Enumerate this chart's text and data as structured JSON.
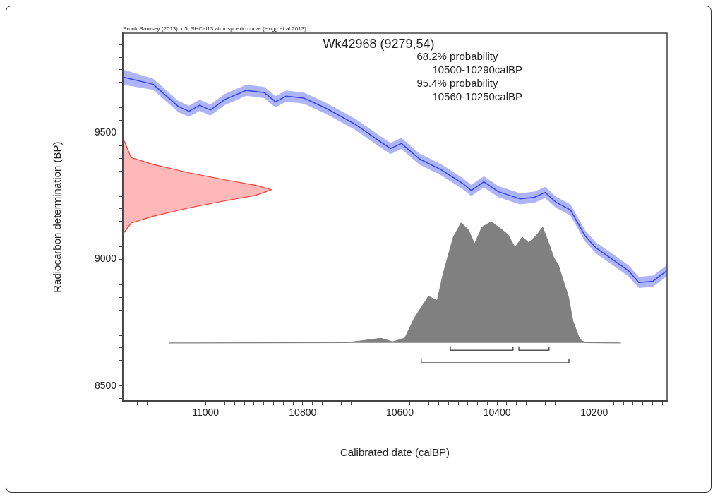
{
  "chart_data": {
    "type": "area",
    "title": "Wk42968 (9279,54)",
    "xlabel": "Calibrated date (calBP)",
    "ylabel": "Radiocarbon determination (BP)",
    "annotations": [
      "Bronk Ramsey (2013); r:5; SHCal13 atmospheric curve (Hogg et al 2013)",
      "68.2% probability",
      "10500-10290calBP",
      "95.4% probability",
      "10560-10250calBP"
    ],
    "xlim": [
      11170,
      10050
    ],
    "ylim": [
      8440,
      9895
    ],
    "xticks": [
      {
        "value": 11160,
        "label": null
      },
      {
        "value": 11140,
        "label": null
      },
      {
        "value": 11120,
        "label": null
      },
      {
        "value": 11100,
        "label": null
      },
      {
        "value": 11080,
        "label": null
      },
      {
        "value": 11060,
        "label": null
      },
      {
        "value": 11040,
        "label": null
      },
      {
        "value": 11020,
        "label": null
      },
      11000,
      {
        "value": 10980,
        "label": null
      },
      {
        "value": 10960,
        "label": null
      },
      {
        "value": 10940,
        "label": null
      },
      {
        "value": 10920,
        "label": null
      },
      {
        "value": 10900,
        "label": null
      },
      {
        "value": 10880,
        "label": null
      },
      {
        "value": 10860,
        "label": null
      },
      {
        "value": 10840,
        "label": null
      },
      {
        "value": 10820,
        "label": null
      },
      10800,
      {
        "value": 10780,
        "label": null
      },
      {
        "value": 10760,
        "label": null
      },
      {
        "value": 10740,
        "label": null
      },
      {
        "value": 10720,
        "label": null
      },
      {
        "value": 10700,
        "label": null
      },
      {
        "value": 10680,
        "label": null
      },
      {
        "value": 10660,
        "label": null
      },
      {
        "value": 10640,
        "label": null
      },
      {
        "value": 10620,
        "label": null
      },
      10600,
      {
        "value": 10580,
        "label": null
      },
      {
        "value": 10560,
        "label": null
      },
      {
        "value": 10540,
        "label": null
      },
      {
        "value": 10520,
        "label": null
      },
      {
        "value": 10500,
        "label": null
      },
      {
        "value": 10480,
        "label": null
      },
      {
        "value": 10460,
        "label": null
      },
      {
        "value": 10440,
        "label": null
      },
      {
        "value": 10420,
        "label": null
      },
      10400,
      {
        "value": 10380,
        "label": null
      },
      {
        "value": 10360,
        "label": null
      },
      {
        "value": 10340,
        "label": null
      },
      {
        "value": 10320,
        "label": null
      },
      {
        "value": 10300,
        "label": null
      },
      {
        "value": 10280,
        "label": null
      },
      {
        "value": 10260,
        "label": null
      },
      {
        "value": 10240,
        "label": null
      },
      {
        "value": 10220,
        "label": null
      },
      10200,
      {
        "value": 10180,
        "label": null
      },
      {
        "value": 10160,
        "label": null
      },
      {
        "value": 10140,
        "label": null
      },
      {
        "value": 10120,
        "label": null
      },
      {
        "value": 10100,
        "label": null
      },
      {
        "value": 10080,
        "label": null
      },
      {
        "value": 10060,
        "label": null
      }
    ],
    "yticks": [
      {
        "value": 8450,
        "label": null
      },
      8500,
      {
        "value": 8550,
        "label": null
      },
      {
        "value": 8600,
        "label": null
      },
      {
        "value": 8650,
        "label": null
      },
      {
        "value": 8700,
        "label": null
      },
      {
        "value": 8750,
        "label": null
      },
      {
        "value": 8800,
        "label": null
      },
      {
        "value": 8850,
        "label": null
      },
      {
        "value": 8900,
        "label": null
      },
      {
        "value": 8950,
        "label": null
      },
      9000,
      {
        "value": 9050,
        "label": null
      },
      {
        "value": 9100,
        "label": null
      },
      {
        "value": 9150,
        "label": null
      },
      {
        "value": 9200,
        "label": null
      },
      {
        "value": 9250,
        "label": null
      },
      {
        "value": 9300,
        "label": null
      },
      {
        "value": 9350,
        "label": null
      },
      {
        "value": 9400,
        "label": null
      },
      {
        "value": 9450,
        "label": null
      },
      9500,
      {
        "value": 9550,
        "label": null
      },
      {
        "value": 9600,
        "label": null
      },
      {
        "value": 9650,
        "label": null
      },
      {
        "value": 9700,
        "label": null
      },
      {
        "value": 9750,
        "label": null
      },
      {
        "value": 9800,
        "label": null
      },
      {
        "value": 9850,
        "label": null
      }
    ],
    "grid": false,
    "legend": false,
    "series": [
      {
        "type": "line",
        "color": "#3344ee",
        "x": [
          11170,
          11108,
          11056,
          11034,
          11012,
          10990,
          10960,
          10916,
          10879,
          10856,
          10834,
          10797,
          10753,
          10693,
          10641,
          10619,
          10597,
          10560,
          10516,
          10471,
          10453,
          10427,
          10397,
          10353,
          10323,
          10301,
          10279,
          10249,
          10219,
          10197,
          10160,
          10130,
          10108,
          10079,
          10050
        ],
        "values": [
          9721,
          9693,
          9605,
          9586,
          9610,
          9591,
          9633,
          9669,
          9660,
          9624,
          9646,
          9638,
          9599,
          9536,
          9467,
          9439,
          9459,
          9398,
          9356,
          9301,
          9273,
          9307,
          9268,
          9240,
          9246,
          9265,
          9227,
          9196,
          9094,
          9047,
          8997,
          8956,
          8909,
          8914,
          8956
        ],
        "lower": [
          9691,
          9671,
          9583,
          9564,
          9588,
          9569,
          9611,
          9647,
          9638,
          9602,
          9624,
          9616,
          9577,
          9514,
          9445,
          9417,
          9437,
          9376,
          9334,
          9279,
          9251,
          9285,
          9246,
          9218,
          9224,
          9243,
          9205,
          9174,
          9072,
          9025,
          8975,
          8934,
          8887,
          8892,
          8934
        ],
        "upper": [
          9751,
          9715,
          9627,
          9608,
          9632,
          9613,
          9655,
          9691,
          9682,
          9646,
          9668,
          9660,
          9621,
          9558,
          9489,
          9461,
          9481,
          9420,
          9378,
          9323,
          9295,
          9329,
          9290,
          9262,
          9268,
          9287,
          9249,
          9218,
          9116,
          9069,
          9019,
          8978,
          8931,
          8936,
          8978
        ]
      },
      {
        "color": "#ff3333",
        "x": [
          11170,
          11167,
          11153,
          11108,
          11034,
          10960,
          10896,
          10864,
          10896,
          10960,
          11034,
          11108,
          11153,
          11167,
          11170
        ],
        "values": [
          9470,
          9467,
          9403,
          9376,
          9343,
          9315,
          9293,
          9276,
          9254,
          9232,
          9204,
          9171,
          9144,
          9108,
          9105
        ]
      },
      {
        "color": "#808080",
        "x": [
          11076,
          10708,
          10639,
          10615,
          10590,
          10570,
          10541,
          10523,
          10511,
          10490,
          10474,
          10459,
          10446,
          10431,
          10412,
          10393,
          10378,
          10363,
          10348,
          10335,
          10319,
          10306,
          10293,
          10283,
          10274,
          10253,
          10244,
          10230,
          10219,
          10145
        ],
        "values": [
          8670,
          8671,
          8688,
          8674,
          8688,
          8768,
          8854,
          8837,
          8942,
          9088,
          9144,
          9116,
          9061,
          9127,
          9149,
          9122,
          9099,
          9047,
          9088,
          9066,
          9094,
          9127,
          9061,
          9006,
          8978,
          8851,
          8757,
          8685,
          8671,
          8670
        ]
      },
      {
        "type": "line",
        "color": "#555555",
        "x": [
          10496,
          10496,
          10367,
          10367
        ],
        "values": [
          8655,
          8641,
          8641,
          8655
        ]
      },
      {
        "type": "line",
        "color": "#555555",
        "x": [
          10355,
          10355,
          10293,
          10293
        ],
        "values": [
          8655,
          8641,
          8641,
          8655
        ]
      },
      {
        "type": "line",
        "color": "#555555",
        "x": [
          10556,
          10556,
          10252,
          10252
        ],
        "values": [
          8605,
          8591,
          8591,
          8605
        ]
      }
    ]
  }
}
